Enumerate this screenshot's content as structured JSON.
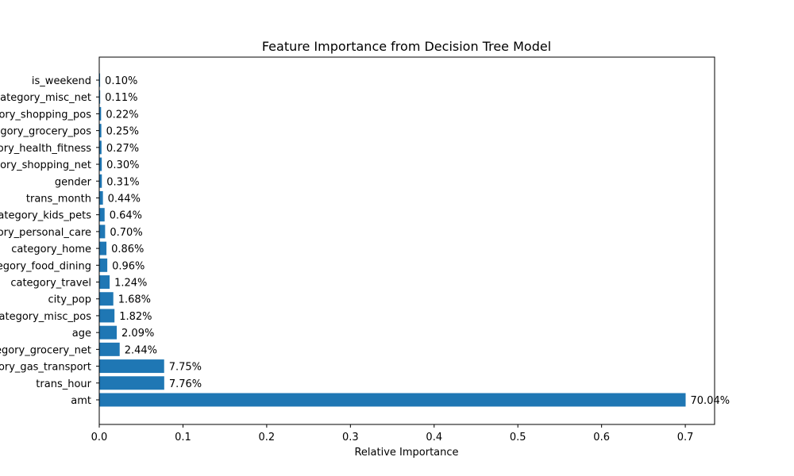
{
  "chart_data": {
    "type": "bar",
    "orientation": "horizontal",
    "title": "Feature Importance from Decision Tree Model",
    "xlabel": "Relative Importance",
    "ylabel": "",
    "xlim": [
      0,
      0.735
    ],
    "xticks": [
      0.0,
      0.1,
      0.2,
      0.3,
      0.4,
      0.5,
      0.6,
      0.7
    ],
    "xtick_labels": [
      "0.0",
      "0.1",
      "0.2",
      "0.3",
      "0.4",
      "0.5",
      "0.6",
      "0.7"
    ],
    "grid": false,
    "bar_color": "#1f77b4",
    "bars": [
      {
        "category": "amt",
        "value": 0.7004,
        "label": "70.04%"
      },
      {
        "category": "trans_hour",
        "value": 0.0776,
        "label": "7.76%"
      },
      {
        "category": "category_gas_transport",
        "value": 0.0775,
        "label": "7.75%"
      },
      {
        "category": "category_grocery_net",
        "value": 0.0244,
        "label": "2.44%"
      },
      {
        "category": "age",
        "value": 0.0209,
        "label": "2.09%"
      },
      {
        "category": "category_misc_pos",
        "value": 0.0182,
        "label": "1.82%"
      },
      {
        "category": "city_pop",
        "value": 0.0168,
        "label": "1.68%"
      },
      {
        "category": "category_travel",
        "value": 0.0124,
        "label": "1.24%"
      },
      {
        "category": "category_food_dining",
        "value": 0.0096,
        "label": "0.96%"
      },
      {
        "category": "category_home",
        "value": 0.0086,
        "label": "0.86%"
      },
      {
        "category": "category_personal_care",
        "value": 0.007,
        "label": "0.70%"
      },
      {
        "category": "category_kids_pets",
        "value": 0.0064,
        "label": "0.64%"
      },
      {
        "category": "trans_month",
        "value": 0.0044,
        "label": "0.44%"
      },
      {
        "category": "gender",
        "value": 0.0031,
        "label": "0.31%"
      },
      {
        "category": "category_shopping_net",
        "value": 0.003,
        "label": "0.30%"
      },
      {
        "category": "category_health_fitness",
        "value": 0.0027,
        "label": "0.27%"
      },
      {
        "category": "category_grocery_pos",
        "value": 0.0025,
        "label": "0.25%"
      },
      {
        "category": "category_shopping_pos",
        "value": 0.0022,
        "label": "0.22%"
      },
      {
        "category": "category_misc_net",
        "value": 0.0011,
        "label": "0.11%"
      },
      {
        "category": "is_weekend",
        "value": 0.001,
        "label": "0.10%"
      }
    ]
  }
}
